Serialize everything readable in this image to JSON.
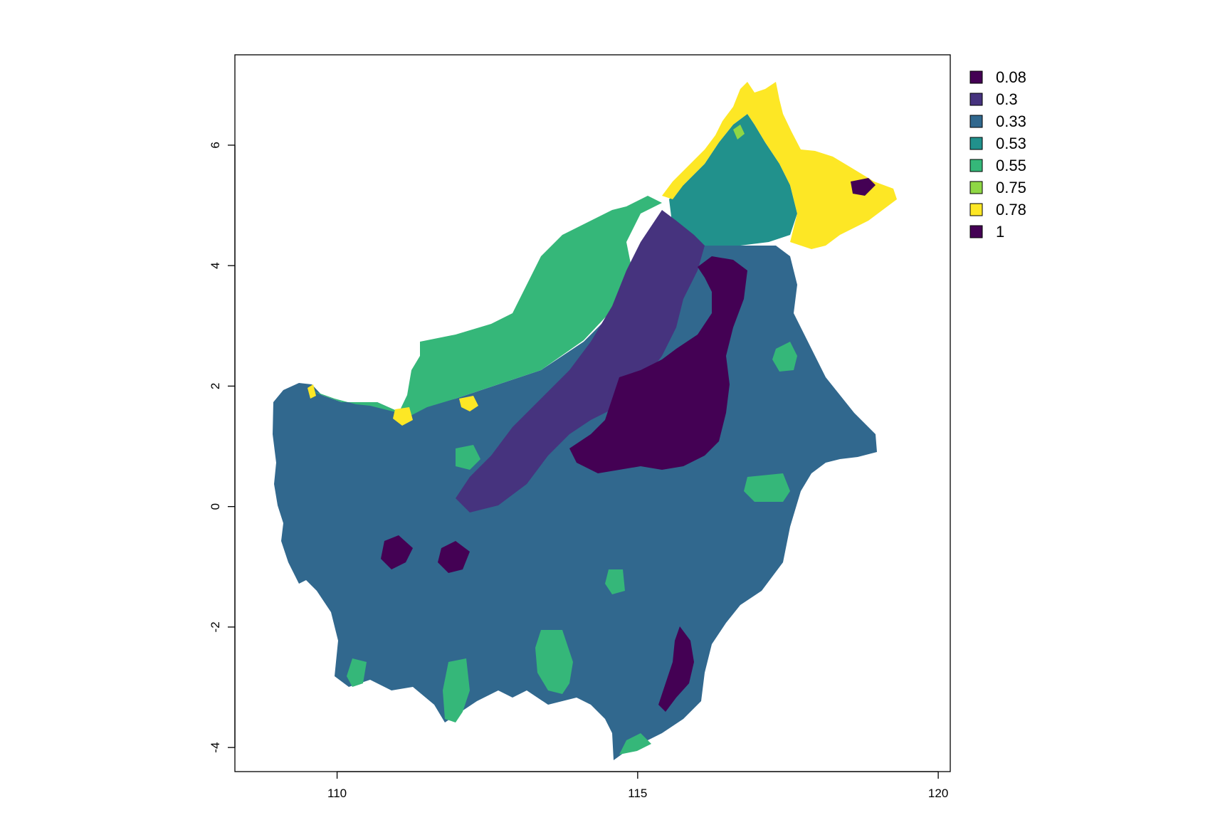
{
  "map": {
    "type": "raster",
    "xlim": [
      108.3,
      120.2
    ],
    "ylim": [
      -4.4,
      7.5
    ],
    "x_ticks": [
      110,
      115,
      120
    ],
    "y_ticks": [
      -4,
      -2,
      0,
      2,
      4,
      6
    ],
    "x_tick_labels": [
      "110",
      "115",
      "120"
    ],
    "y_tick_labels": [
      "-4",
      "-2",
      "0",
      "2",
      "4",
      "6"
    ],
    "legend": {
      "placement": "right",
      "entries": [
        {
          "label": "0.08",
          "color": "#440154"
        },
        {
          "label": "0.3",
          "color": "#46337e"
        },
        {
          "label": "0.33",
          "color": "#31688e"
        },
        {
          "label": "0.53",
          "color": "#21918c"
        },
        {
          "label": "0.55",
          "color": "#35b779"
        },
        {
          "label": "0.75",
          "color": "#8fd744"
        },
        {
          "label": "0.78",
          "color": "#fde725"
        },
        {
          "label": "1",
          "color": "#440154"
        }
      ]
    }
  }
}
